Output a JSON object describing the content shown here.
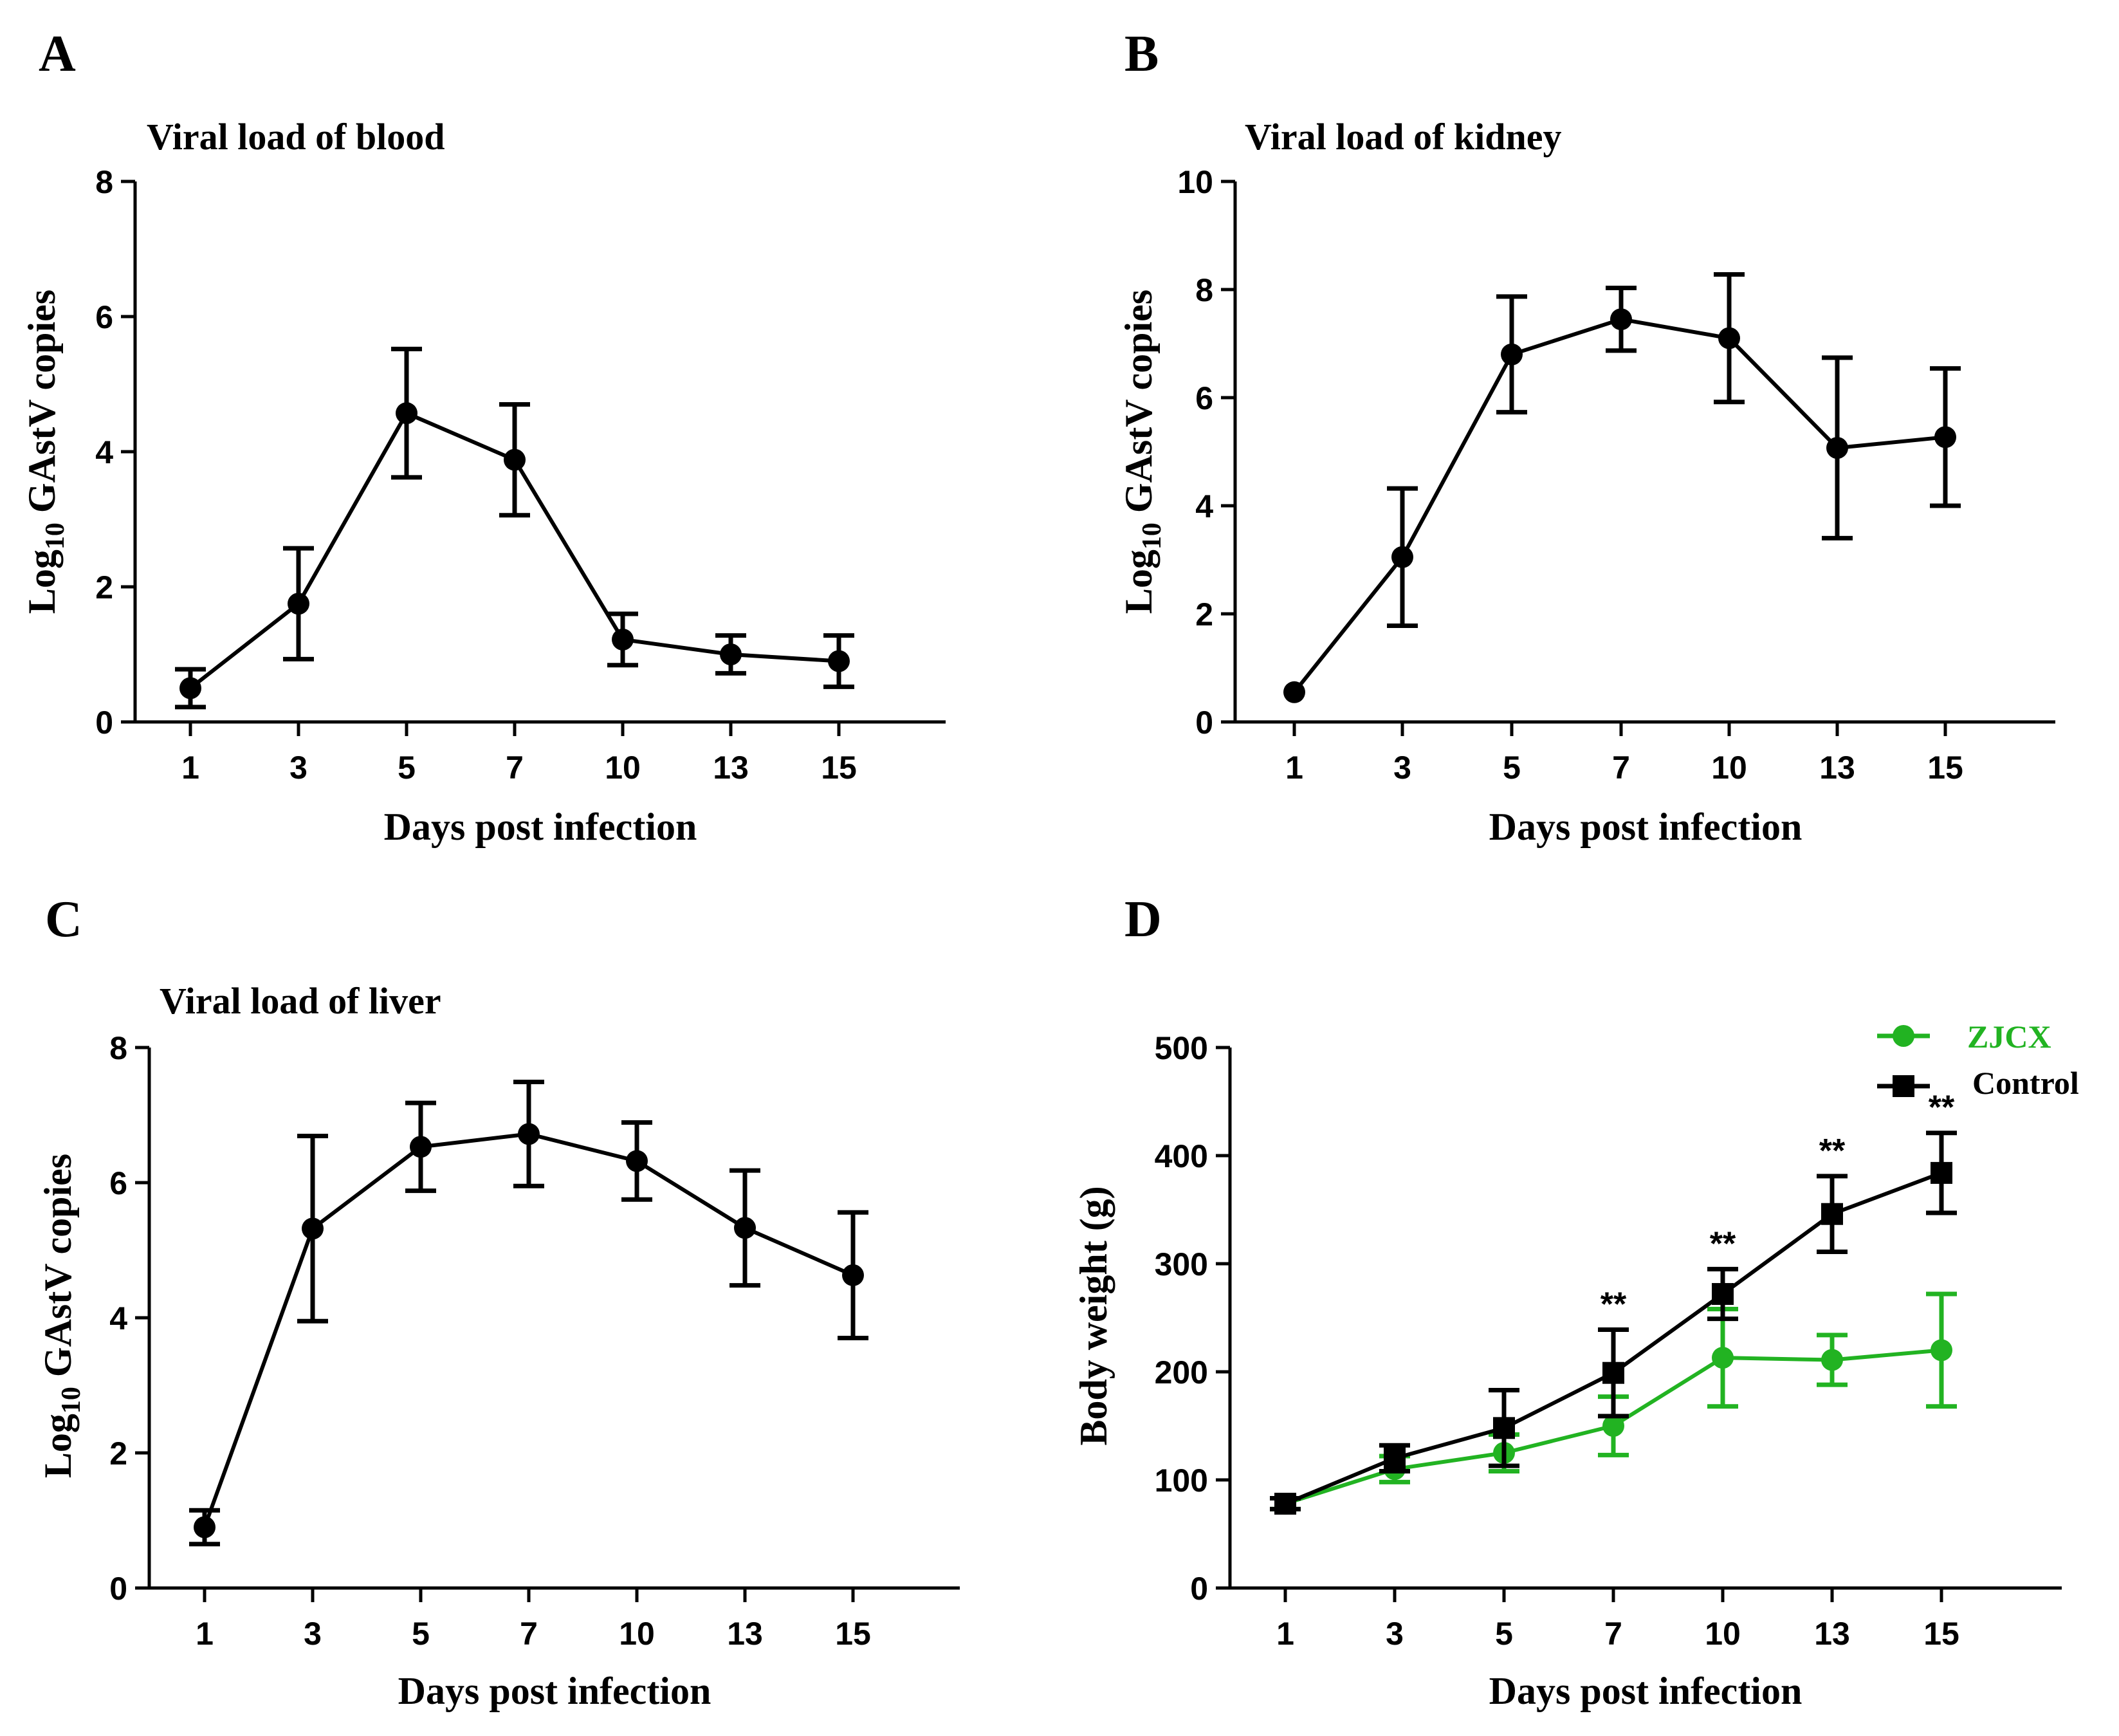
{
  "chart_data": [
    {
      "panel": "A",
      "type": "line",
      "title": "Viral load of blood",
      "xlabel": "Days post infection",
      "ylabel": "Log10 GAstV copies",
      "ylabel_parts": [
        "Log",
        "10",
        " GAstV copies"
      ],
      "categories": [
        "1",
        "3",
        "5",
        "7",
        "10",
        "13",
        "15"
      ],
      "ylim": [
        0,
        8
      ],
      "yticks": [
        0,
        2,
        4,
        6,
        8
      ],
      "series": [
        {
          "name": "Viral load",
          "color": "#000000",
          "marker": "circle",
          "values": [
            0.5,
            1.75,
            4.57,
            3.88,
            1.22,
            1.0,
            0.9
          ],
          "errors": [
            0.28,
            0.82,
            0.95,
            0.82,
            0.38,
            0.28,
            0.38
          ]
        }
      ]
    },
    {
      "panel": "B",
      "type": "line",
      "title": "Viral load of kidney",
      "xlabel": "Days post infection",
      "ylabel": "Log10 GAstV copies",
      "ylabel_parts": [
        "Log",
        "10",
        " GAstV copies"
      ],
      "categories": [
        "1",
        "3",
        "5",
        "7",
        "10",
        "13",
        "15"
      ],
      "ylim": [
        0,
        10
      ],
      "yticks": [
        0,
        2,
        4,
        6,
        8,
        10
      ],
      "series": [
        {
          "name": "Viral load",
          "color": "#000000",
          "marker": "circle",
          "values": [
            0.55,
            3.05,
            6.8,
            7.45,
            7.1,
            5.07,
            5.27
          ],
          "errors": [
            0.0,
            1.27,
            1.07,
            0.58,
            1.18,
            1.67,
            1.27
          ]
        }
      ]
    },
    {
      "panel": "C",
      "type": "line",
      "title": "Viral load of liver",
      "xlabel": "Days post infection",
      "ylabel": "Log10 GAstV copies",
      "ylabel_parts": [
        "Log",
        "10",
        " GAstV copies"
      ],
      "categories": [
        "1",
        "3",
        "5",
        "7",
        "10",
        "13",
        "15"
      ],
      "ylim": [
        0,
        8
      ],
      "yticks": [
        0,
        2,
        4,
        6,
        8
      ],
      "series": [
        {
          "name": "Viral load",
          "color": "#000000",
          "marker": "circle",
          "values": [
            0.9,
            5.32,
            6.53,
            6.72,
            6.32,
            5.33,
            4.63
          ],
          "errors": [
            0.25,
            1.37,
            0.65,
            0.77,
            0.57,
            0.85,
            0.93
          ]
        }
      ]
    },
    {
      "panel": "D",
      "type": "line",
      "title": "",
      "xlabel": "Days post infection",
      "ylabel": "Body weight (g)",
      "categories": [
        "1",
        "3",
        "5",
        "7",
        "10",
        "13",
        "15"
      ],
      "ylim": [
        0,
        500
      ],
      "yticks": [
        0,
        100,
        200,
        300,
        400,
        500
      ],
      "legend": "top-right",
      "significance": [
        {
          "category": "7",
          "label": "**"
        },
        {
          "category": "10",
          "label": "**"
        },
        {
          "category": "13",
          "label": "**"
        },
        {
          "category": "15",
          "label": "**"
        }
      ],
      "series": [
        {
          "name": "ZJCX",
          "color": "#22b322",
          "marker": "circle",
          "values": [
            78,
            110,
            125,
            150,
            213,
            211,
            220
          ],
          "errors": [
            5,
            12,
            17,
            27,
            45,
            23,
            52
          ]
        },
        {
          "name": "Control",
          "color": "#000000",
          "marker": "square",
          "values": [
            78,
            120,
            148,
            199,
            272,
            346,
            384
          ],
          "errors": [
            5,
            12,
            35,
            40,
            23,
            35,
            37
          ]
        }
      ]
    }
  ]
}
